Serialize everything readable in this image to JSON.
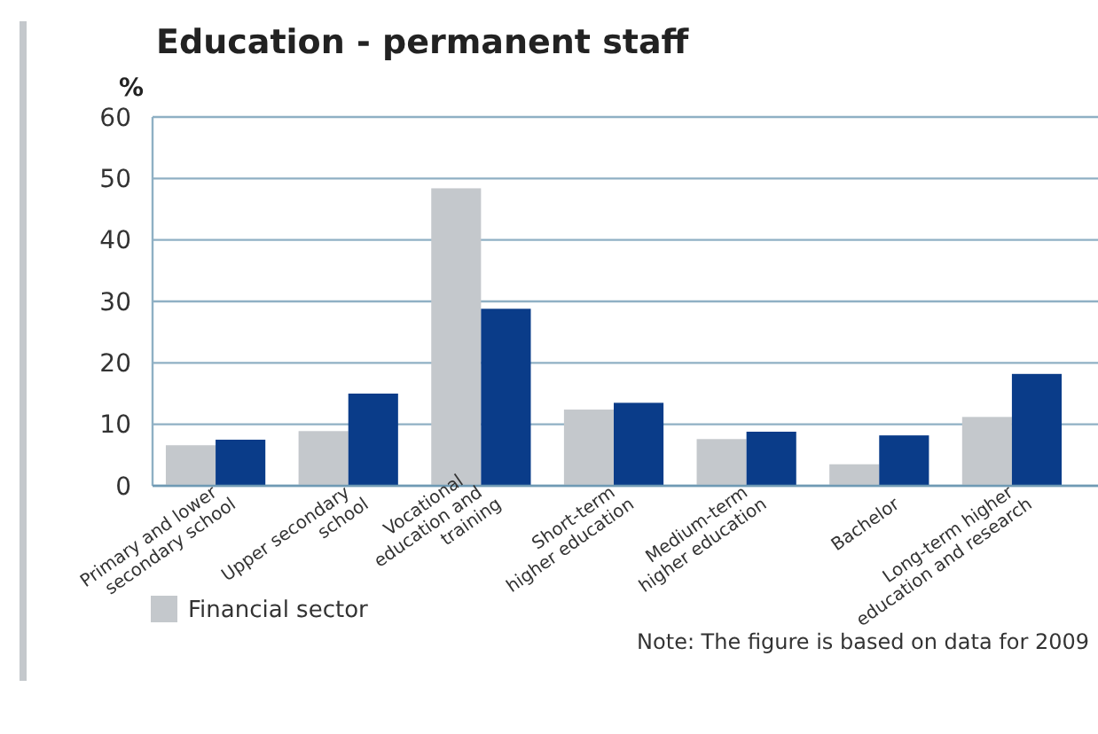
{
  "chart_data": {
    "type": "bar",
    "title": "Education - permanent staff",
    "ylabel": "%",
    "categories": [
      "Primary and lower\nsecondary school",
      "Upper secondary\nschool",
      "Vocational\neducation and\ntraining",
      "Short-term\nhigher education",
      "Medium-term\nhigher education",
      "Bachelor",
      "Long-term higher\neducation and research"
    ],
    "series": [
      {
        "name": "Financial sector",
        "color": "#c4c8cc",
        "values": [
          6.6,
          8.9,
          48.4,
          12.4,
          7.6,
          3.5,
          11.2
        ]
      },
      {
        "color": "#0a3c89",
        "values": [
          7.5,
          15.0,
          28.8,
          13.5,
          8.8,
          8.2,
          18.2
        ]
      }
    ],
    "ylim": [
      0,
      60
    ],
    "yticks": [
      0,
      10,
      20,
      30,
      40,
      50,
      60
    ],
    "grid": "y",
    "legend": "bottom left",
    "annotations": [
      "Note: The figure is based on data for 2009"
    ]
  }
}
